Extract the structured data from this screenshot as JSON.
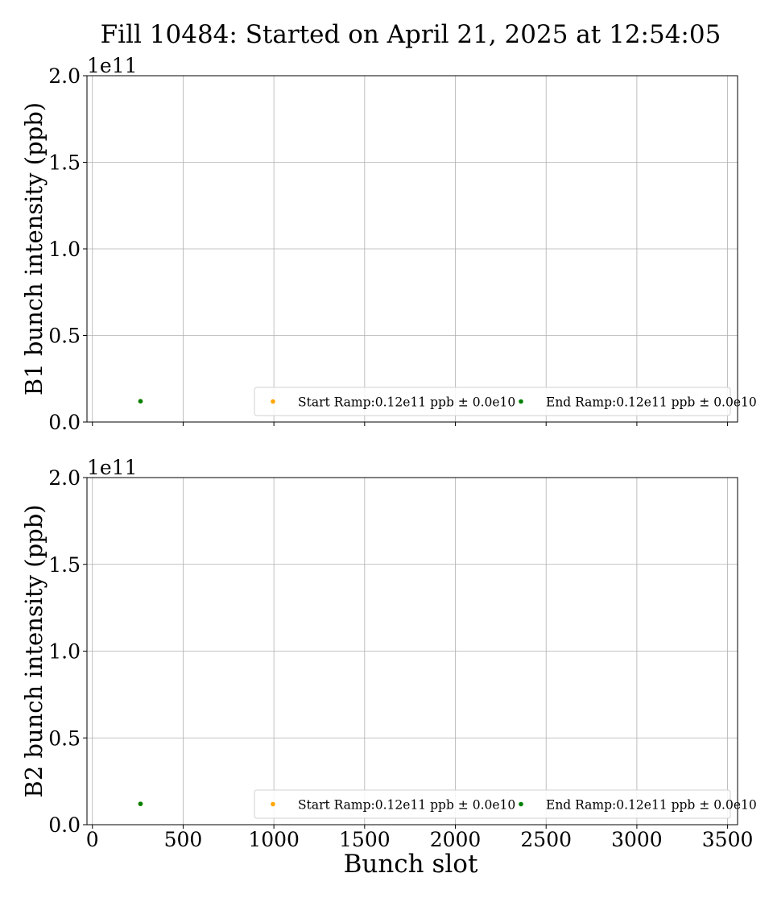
{
  "figure": {
    "title": "Fill 10484: Started on April 21, 2025 at 12:54:05",
    "xlabel": "Bunch slot"
  },
  "chart_data": [
    {
      "type": "scatter",
      "ylabel": "B1 bunch intensity (ppb)",
      "y_offset_label": "1e11",
      "xlim": [
        -30,
        3555
      ],
      "ylim": [
        0,
        200000000000.0
      ],
      "xticks": [
        0,
        500,
        1000,
        1500,
        2000,
        2500,
        3000,
        3500
      ],
      "yticks": [
        0,
        50000000000.0,
        100000000000.0,
        150000000000.0,
        200000000000.0
      ],
      "ytick_labels": [
        "0.0",
        "0.5",
        "1.0",
        "1.5",
        "2.0"
      ],
      "grid": true,
      "legend_position": "lower-right",
      "series": [
        {
          "name": "Start Ramp:0.12e11 ppb ± 0.0e10",
          "color": "#ffa500",
          "points": [
            {
              "x": 265,
              "y": 12000000000.0
            }
          ]
        },
        {
          "name": "End Ramp:0.12e11 ppb ± 0.0e10",
          "color": "#008000",
          "points": [
            {
              "x": 265,
              "y": 12000000000.0
            }
          ]
        }
      ]
    },
    {
      "type": "scatter",
      "ylabel": "B2 bunch intensity (ppb)",
      "y_offset_label": "1e11",
      "xlim": [
        -30,
        3555
      ],
      "ylim": [
        0,
        200000000000.0
      ],
      "xticks": [
        0,
        500,
        1000,
        1500,
        2000,
        2500,
        3000,
        3500
      ],
      "xtick_labels": [
        "0",
        "500",
        "1000",
        "1500",
        "2000",
        "2500",
        "3000",
        "3500"
      ],
      "yticks": [
        0,
        50000000000.0,
        100000000000.0,
        150000000000.0,
        200000000000.0
      ],
      "ytick_labels": [
        "0.0",
        "0.5",
        "1.0",
        "1.5",
        "2.0"
      ],
      "grid": true,
      "legend_position": "lower-right",
      "series": [
        {
          "name": "Start Ramp:0.12e11 ppb ± 0.0e10",
          "color": "#ffa500",
          "points": [
            {
              "x": 265,
              "y": 12000000000.0
            }
          ]
        },
        {
          "name": "End Ramp:0.12e11 ppb ± 0.0e10",
          "color": "#008000",
          "points": [
            {
              "x": 265,
              "y": 12000000000.0
            }
          ]
        }
      ]
    }
  ]
}
